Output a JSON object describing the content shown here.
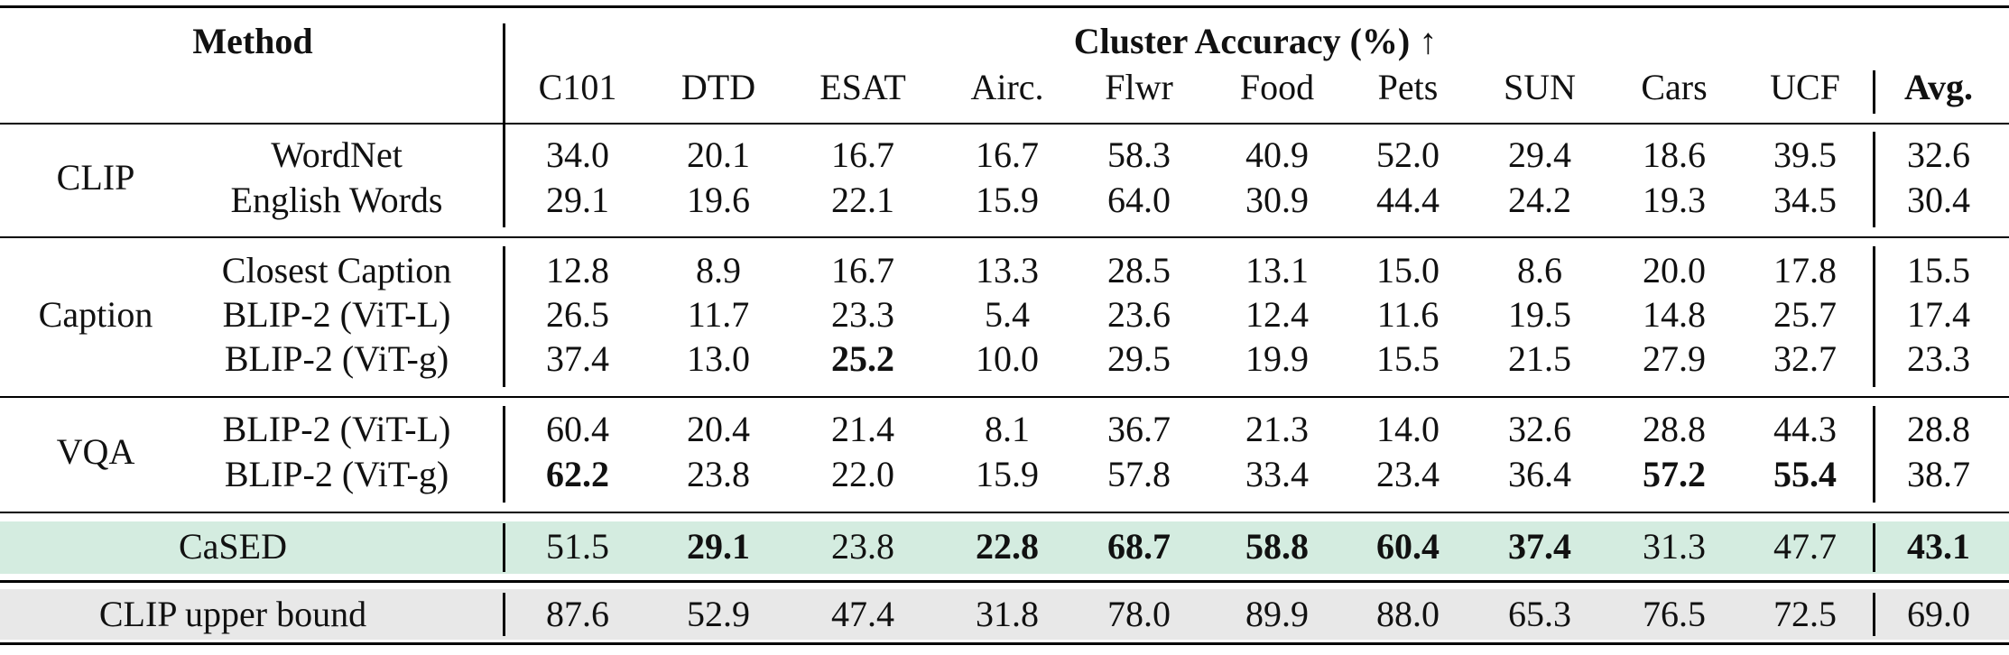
{
  "header": {
    "method_label": "Method",
    "group_title": "Cluster Accuracy (%)",
    "arrow": "↑",
    "columns": [
      "C101",
      "DTD",
      "ESAT",
      "Airc.",
      "Flwr",
      "Food",
      "Pets",
      "SUN",
      "Cars",
      "UCF"
    ],
    "avg_label": "Avg."
  },
  "groups": [
    {
      "name": "CLIP",
      "rows": [
        {
          "method": "WordNet",
          "values": [
            "34.0",
            "20.1",
            "16.7",
            "16.7",
            "58.3",
            "40.9",
            "52.0",
            "29.4",
            "18.6",
            "39.5"
          ],
          "avg": "32.6",
          "bold": []
        },
        {
          "method": "English Words",
          "values": [
            "29.1",
            "19.6",
            "22.1",
            "15.9",
            "64.0",
            "30.9",
            "44.4",
            "24.2",
            "19.3",
            "34.5"
          ],
          "avg": "30.4",
          "bold": []
        }
      ]
    },
    {
      "name": "Caption",
      "rows": [
        {
          "method": "Closest Caption",
          "values": [
            "12.8",
            "8.9",
            "16.7",
            "13.3",
            "28.5",
            "13.1",
            "15.0",
            "8.6",
            "20.0",
            "17.8"
          ],
          "avg": "15.5",
          "bold": []
        },
        {
          "method": "BLIP-2 (ViT-L)",
          "values": [
            "26.5",
            "11.7",
            "23.3",
            "5.4",
            "23.6",
            "12.4",
            "11.6",
            "19.5",
            "14.8",
            "25.7"
          ],
          "avg": "17.4",
          "bold": []
        },
        {
          "method": "BLIP-2 (ViT-g)",
          "values": [
            "37.4",
            "13.0",
            "25.2",
            "10.0",
            "29.5",
            "19.9",
            "15.5",
            "21.5",
            "27.9",
            "32.7"
          ],
          "avg": "23.3",
          "bold": [
            2
          ]
        }
      ]
    },
    {
      "name": "VQA",
      "rows": [
        {
          "method": "BLIP-2 (ViT-L)",
          "values": [
            "60.4",
            "20.4",
            "21.4",
            "8.1",
            "36.7",
            "21.3",
            "14.0",
            "32.6",
            "28.8",
            "44.3"
          ],
          "avg": "28.8",
          "bold": []
        },
        {
          "method": "BLIP-2 (ViT-g)",
          "values": [
            "62.2",
            "23.8",
            "22.0",
            "15.9",
            "57.8",
            "33.4",
            "23.4",
            "36.4",
            "57.2",
            "55.4"
          ],
          "avg": "38.7",
          "bold": [
            0,
            8,
            9
          ]
        }
      ]
    }
  ],
  "cased": {
    "method": "CaSED",
    "values": [
      "51.5",
      "29.1",
      "23.8",
      "22.8",
      "68.7",
      "58.8",
      "60.4",
      "37.4",
      "31.3",
      "47.7"
    ],
    "avg": "43.1",
    "bold": [
      1,
      3,
      4,
      5,
      6,
      7
    ],
    "avg_bold": true,
    "highlight_color": "#d4ece0"
  },
  "upper": {
    "method": "CLIP upper bound",
    "values": [
      "87.6",
      "52.9",
      "47.4",
      "31.8",
      "78.0",
      "89.9",
      "88.0",
      "65.3",
      "76.5",
      "72.5"
    ],
    "avg": "69.0",
    "highlight_color": "#e8e8e8"
  }
}
